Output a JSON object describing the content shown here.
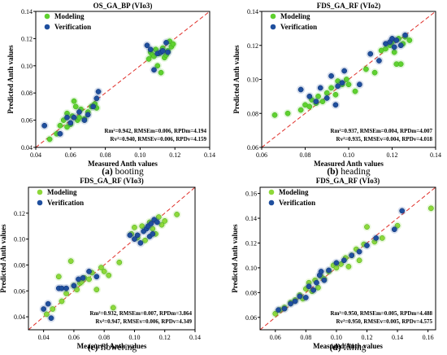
{
  "chart_data": [
    {
      "type": "scatter",
      "title": "OS_GA_BP (VIo3)",
      "xlabel": "Measured Anth values",
      "ylabel": "Predicted Anth values",
      "xlim": [
        0.04,
        0.14
      ],
      "ylim": [
        0.04,
        0.14
      ],
      "xticks": [
        "0.04",
        "0.06",
        "0.08",
        "0.10",
        "0.12",
        "0.14"
      ],
      "yticks": [
        "0.04",
        "0.06",
        "0.08",
        "0.10",
        "0.12",
        "0.14"
      ],
      "legend_position": "top-left",
      "stats_line1": "Rm²=0.942, RMSEm=0.006, RPDm=4.194",
      "stats_line2": "Rv²=0.940, RMSEv=0.006, RPDv=4.159",
      "caption_letter": "(a)",
      "caption_text": " booting",
      "series": [
        {
          "name": "Modeling",
          "color": "#5fd12f",
          "x": [
            0.048,
            0.052,
            0.054,
            0.056,
            0.058,
            0.058,
            0.06,
            0.061,
            0.062,
            0.063,
            0.064,
            0.065,
            0.066,
            0.068,
            0.07,
            0.072,
            0.074,
            0.075,
            0.105,
            0.106,
            0.107,
            0.108,
            0.109,
            0.11,
            0.111,
            0.112,
            0.113,
            0.114,
            0.115,
            0.116,
            0.117,
            0.118,
            0.119
          ],
          "y": [
            0.046,
            0.05,
            0.056,
            0.06,
            0.055,
            0.065,
            0.057,
            0.063,
            0.074,
            0.07,
            0.06,
            0.062,
            0.068,
            0.061,
            0.066,
            0.07,
            0.072,
            0.069,
            0.105,
            0.11,
            0.108,
            0.107,
            0.112,
            0.1,
            0.109,
            0.095,
            0.113,
            0.106,
            0.108,
            0.111,
            0.118,
            0.114,
            0.116
          ]
        },
        {
          "name": "Verification",
          "color": "#1f4f9e",
          "x": [
            0.045,
            0.054,
            0.058,
            0.06,
            0.062,
            0.065,
            0.068,
            0.07,
            0.073,
            0.075,
            0.076,
            0.104,
            0.106,
            0.108,
            0.11,
            0.112,
            0.113,
            0.115,
            0.116
          ],
          "y": [
            0.056,
            0.05,
            0.062,
            0.058,
            0.062,
            0.066,
            0.06,
            0.064,
            0.07,
            0.076,
            0.081,
            0.115,
            0.112,
            0.097,
            0.109,
            0.11,
            0.111,
            0.117,
            0.11
          ]
        }
      ]
    },
    {
      "type": "scatter",
      "title": "FDS_GA_RF (VIo2)",
      "xlabel": "Measured Anth values",
      "ylabel": "Predicted Anth values",
      "xlim": [
        0.06,
        0.14
      ],
      "ylim": [
        0.06,
        0.14
      ],
      "xticks": [
        "0.06",
        "0.08",
        "0.10",
        "0.12",
        "0.14"
      ],
      "yticks": [
        "0.06",
        "0.08",
        "0.10",
        "0.12",
        "0.14"
      ],
      "legend_position": "top-left",
      "stats_line1": "Rm²=0.937, RMSEm=0.004, RPDm=4.007",
      "stats_line2": "Rv²=0.935, RMSEv=0.004, RPDv=4.018",
      "caption_letter": "(b)",
      "caption_text": " heading",
      "series": [
        {
          "name": "Modeling",
          "color": "#5fd12f",
          "x": [
            0.066,
            0.072,
            0.078,
            0.08,
            0.082,
            0.083,
            0.085,
            0.086,
            0.088,
            0.09,
            0.092,
            0.094,
            0.095,
            0.097,
            0.099,
            0.1,
            0.103,
            0.108,
            0.112,
            0.115,
            0.117,
            0.119,
            0.12,
            0.121,
            0.122,
            0.123,
            0.124,
            0.125,
            0.126,
            0.128
          ],
          "y": [
            0.079,
            0.08,
            0.082,
            0.085,
            0.084,
            0.088,
            0.086,
            0.09,
            0.087,
            0.092,
            0.095,
            0.091,
            0.099,
            0.097,
            0.1,
            0.097,
            0.093,
            0.106,
            0.104,
            0.117,
            0.118,
            0.12,
            0.122,
            0.116,
            0.109,
            0.124,
            0.109,
            0.121,
            0.125,
            0.123
          ]
        },
        {
          "name": "Verification",
          "color": "#1f4f9e",
          "x": [
            0.078,
            0.082,
            0.085,
            0.087,
            0.09,
            0.092,
            0.094,
            0.095,
            0.097,
            0.098,
            0.105,
            0.11,
            0.114,
            0.117,
            0.119,
            0.12,
            0.121,
            0.122,
            0.124,
            0.126
          ],
          "y": [
            0.094,
            0.09,
            0.087,
            0.095,
            0.089,
            0.102,
            0.085,
            0.096,
            0.098,
            0.105,
            0.097,
            0.115,
            0.111,
            0.121,
            0.122,
            0.124,
            0.119,
            0.123,
            0.12,
            0.126
          ]
        }
      ]
    },
    {
      "type": "scatter",
      "title": "FDS_GA_RF (VIo3)",
      "xlabel": "Measured Anth values",
      "ylabel": "Predicted Anth values",
      "xlim": [
        0.03,
        0.14
      ],
      "ylim": [
        0.03,
        0.14
      ],
      "xticks": [
        "0.04",
        "0.06",
        "0.08",
        "0.10",
        "0.12",
        "0.14"
      ],
      "yticks": [
        "0.04",
        "0.06",
        "0.08",
        "0.10",
        "0.12"
      ],
      "legend_position": "top-left",
      "stats_line1": "Rm²=0.932, RMSEm=0.007, RPDm=3.864",
      "stats_line2": "Rv²=0.947, RMSEv=0.006, RPDv=4.349",
      "caption_letter": "(c)",
      "caption_text": " flowering",
      "series": [
        {
          "name": "Modeling",
          "color": "#8ed83a",
          "x": [
            0.042,
            0.046,
            0.05,
            0.052,
            0.055,
            0.058,
            0.06,
            0.062,
            0.064,
            0.065,
            0.067,
            0.07,
            0.072,
            0.075,
            0.078,
            0.08,
            0.083,
            0.086,
            0.09,
            0.098,
            0.1,
            0.102,
            0.105,
            0.107,
            0.11,
            0.112,
            0.114,
            0.116,
            0.118,
            0.12,
            0.128
          ],
          "y": [
            0.042,
            0.046,
            0.071,
            0.052,
            0.058,
            0.083,
            0.064,
            0.061,
            0.066,
            0.067,
            0.07,
            0.069,
            0.074,
            0.061,
            0.078,
            0.075,
            0.072,
            0.047,
            0.082,
            0.104,
            0.109,
            0.101,
            0.11,
            0.099,
            0.113,
            0.108,
            0.104,
            0.117,
            0.111,
            0.114,
            0.119
          ]
        },
        {
          "name": "Verification",
          "color": "#1f4f9e",
          "x": [
            0.04,
            0.043,
            0.045,
            0.05,
            0.052,
            0.055,
            0.06,
            0.063,
            0.066,
            0.07,
            0.075,
            0.097,
            0.1,
            0.102,
            0.104,
            0.106,
            0.108,
            0.109,
            0.11,
            0.111,
            0.112,
            0.113,
            0.115
          ],
          "y": [
            0.046,
            0.05,
            0.039,
            0.062,
            0.062,
            0.062,
            0.064,
            0.069,
            0.07,
            0.075,
            0.071,
            0.103,
            0.1,
            0.103,
            0.097,
            0.106,
            0.108,
            0.11,
            0.102,
            0.112,
            0.104,
            0.115,
            0.113
          ]
        }
      ]
    },
    {
      "type": "scatter",
      "title": "FDS_GA_RF (VIo3)",
      "xlabel": "Measured Anth values",
      "ylabel": "Predicted Anth values",
      "xlim": [
        0.05,
        0.165
      ],
      "ylim": [
        0.05,
        0.165
      ],
      "xticks": [
        "0.06",
        "0.08",
        "0.10",
        "0.12",
        "0.14",
        "0.16"
      ],
      "yticks": [
        "0.06",
        "0.08",
        "0.10",
        "0.12",
        "0.14",
        "0.16"
      ],
      "legend_position": "top-left",
      "stats_line1": "Rm²=0.950, RMSEm=0.005, RPDm=4.488",
      "stats_line2": "Rv²=0.950, RMSEv=0.005, RPDv=4.575",
      "caption_letter": "(d)",
      "caption_text": " filling",
      "series": [
        {
          "name": "Modeling",
          "color": "#8ed83a",
          "x": [
            0.06,
            0.063,
            0.066,
            0.07,
            0.073,
            0.076,
            0.078,
            0.08,
            0.082,
            0.084,
            0.086,
            0.088,
            0.09,
            0.092,
            0.095,
            0.098,
            0.1,
            0.103,
            0.106,
            0.108,
            0.11,
            0.113,
            0.115,
            0.118,
            0.12,
            0.125,
            0.13,
            0.14,
            0.162
          ],
          "y": [
            0.063,
            0.066,
            0.068,
            0.072,
            0.074,
            0.078,
            0.075,
            0.083,
            0.088,
            0.081,
            0.09,
            0.084,
            0.093,
            0.091,
            0.097,
            0.102,
            0.1,
            0.103,
            0.108,
            0.101,
            0.11,
            0.115,
            0.106,
            0.119,
            0.133,
            0.121,
            0.124,
            0.134,
            0.148
          ]
        },
        {
          "name": "Verification",
          "color": "#1f4f9e",
          "x": [
            0.062,
            0.066,
            0.07,
            0.073,
            0.076,
            0.08,
            0.082,
            0.085,
            0.087,
            0.089,
            0.09,
            0.092,
            0.095,
            0.1,
            0.105,
            0.11,
            0.115,
            0.12,
            0.126,
            0.138,
            0.143
          ],
          "y": [
            0.066,
            0.067,
            0.071,
            0.073,
            0.077,
            0.076,
            0.085,
            0.082,
            0.088,
            0.094,
            0.097,
            0.09,
            0.098,
            0.104,
            0.106,
            0.11,
            0.113,
            0.118,
            0.124,
            0.131,
            0.146
          ]
        }
      ]
    }
  ]
}
